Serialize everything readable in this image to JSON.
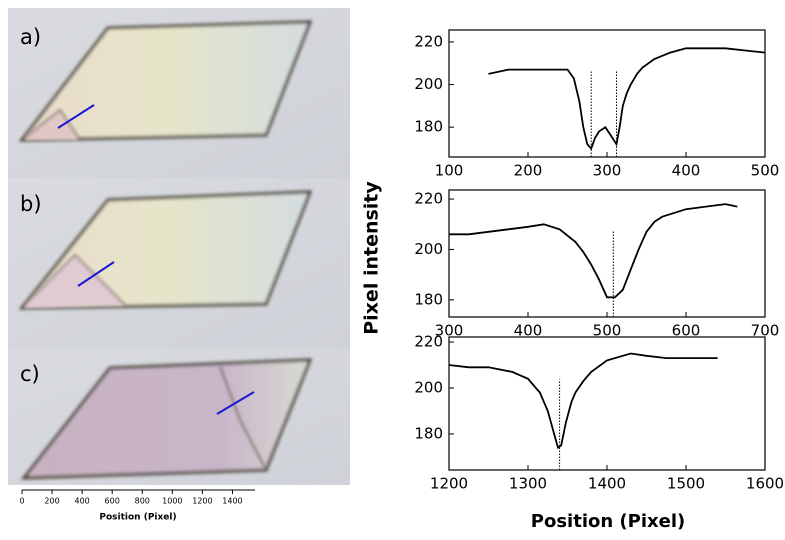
{
  "panels": [
    "a)",
    "b)",
    "c)"
  ],
  "scale_bar": {
    "xlim": [
      0,
      1550
    ],
    "xticks": [
      0,
      200,
      400,
      600,
      800,
      1000,
      1200,
      1400
    ],
    "label": "Position (Pixel)"
  },
  "ylabel": "Pixel intensity",
  "xlabel": "Position (Pixel)",
  "chart_data": [
    {
      "type": "line",
      "color": "#000000",
      "x": [
        150,
        175,
        200,
        225,
        250,
        258,
        265,
        270,
        275,
        280,
        285,
        290,
        298,
        305,
        312,
        316,
        320,
        325,
        330,
        338,
        345,
        360,
        380,
        400,
        425,
        450,
        475,
        500
      ],
      "values": [
        205,
        207,
        207,
        207,
        207,
        203,
        192,
        180,
        172,
        170,
        175,
        178,
        180,
        176,
        172,
        180,
        190,
        196,
        200,
        205,
        208,
        212,
        215,
        217,
        217,
        217,
        216,
        215
      ],
      "markers": [
        280,
        312
      ],
      "xlim": [
        100,
        500
      ],
      "ylim": [
        166,
        225.6
      ],
      "xticks": [
        100,
        200,
        300,
        400,
        500
      ],
      "yticks": [
        180,
        200,
        220
      ]
    },
    {
      "type": "line",
      "color": "#000000",
      "x": [
        300,
        325,
        350,
        375,
        400,
        420,
        440,
        460,
        470,
        480,
        490,
        500,
        510,
        520,
        530,
        540,
        550,
        560,
        570,
        600,
        625,
        650,
        665
      ],
      "values": [
        206,
        206,
        207,
        208,
        209,
        210,
        208,
        203,
        199,
        194,
        188,
        181,
        181,
        184,
        192,
        200,
        207,
        211,
        213,
        216,
        217,
        218,
        217
      ],
      "markers": [
        508
      ],
      "xlim": [
        300,
        700
      ],
      "ylim": [
        173.2,
        223.6
      ],
      "xticks": [
        300,
        400,
        500,
        600,
        700
      ],
      "yticks": [
        180,
        200,
        220
      ]
    },
    {
      "type": "line",
      "color": "#000000",
      "x": [
        1200,
        1225,
        1250,
        1280,
        1300,
        1315,
        1325,
        1333,
        1338,
        1342,
        1348,
        1355,
        1360,
        1370,
        1380,
        1400,
        1430,
        1450,
        1475,
        1500,
        1520,
        1540
      ],
      "values": [
        210,
        209,
        209,
        207,
        204,
        198,
        190,
        180,
        174,
        175,
        185,
        194,
        198,
        203,
        207,
        212,
        215,
        214,
        213,
        213,
        213,
        213
      ],
      "markers": [
        1340
      ],
      "xlim": [
        1200,
        1600
      ],
      "ylim": [
        164.3,
        222.2
      ],
      "xticks": [
        1200,
        1300,
        1400,
        1500,
        1600
      ],
      "yticks": [
        180,
        200,
        220
      ]
    }
  ]
}
